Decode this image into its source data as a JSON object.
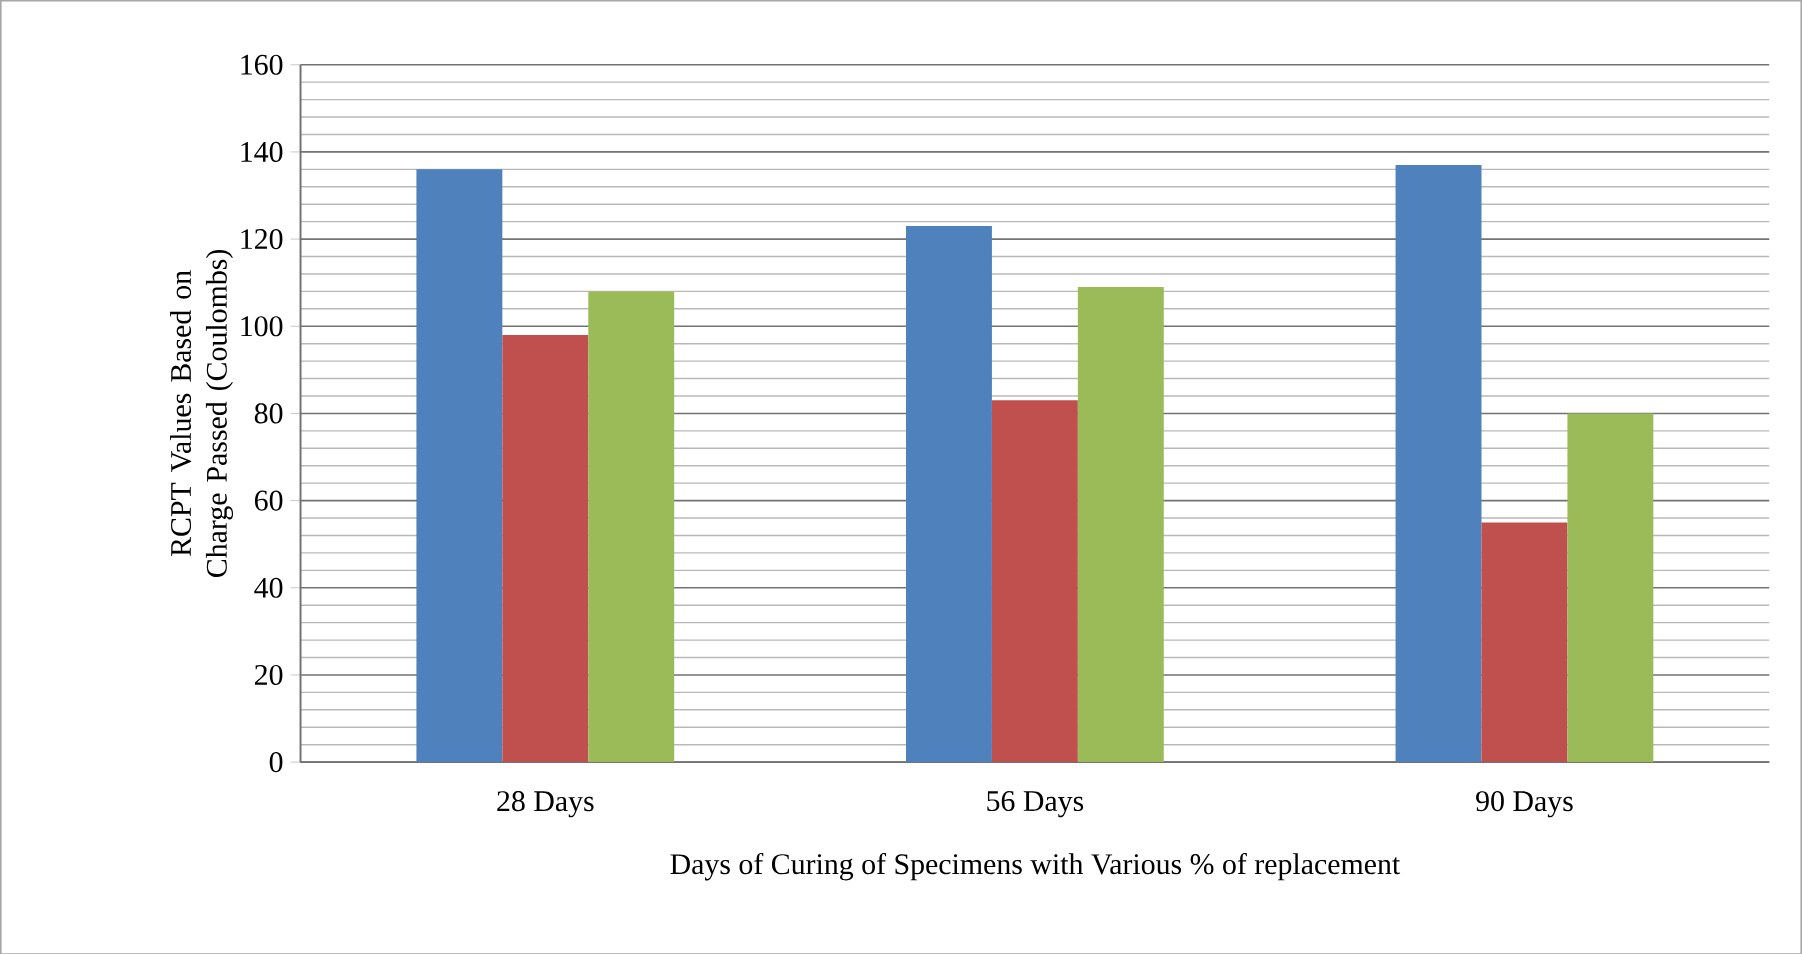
{
  "chart_data": {
    "type": "bar",
    "xlabel": "Days of Curing of Specimens with Various % of replacement",
    "ylabel": "RCPT Values Based on Charge Passed (Coulombs)",
    "categories": [
      "28 Days",
      "56 Days",
      "90 Days"
    ],
    "series": [
      {
        "color": "#4f81bd",
        "values": [
          136,
          123,
          137
        ]
      },
      {
        "color": "#c0504d",
        "values": [
          98,
          83,
          55
        ]
      },
      {
        "color": "#9bbb59",
        "values": [
          108,
          109,
          80
        ]
      }
    ],
    "ylim": [
      0,
      160
    ],
    "yticks": [
      0,
      20,
      40,
      60,
      80,
      100,
      120,
      140,
      160
    ],
    "grid": "y"
  }
}
